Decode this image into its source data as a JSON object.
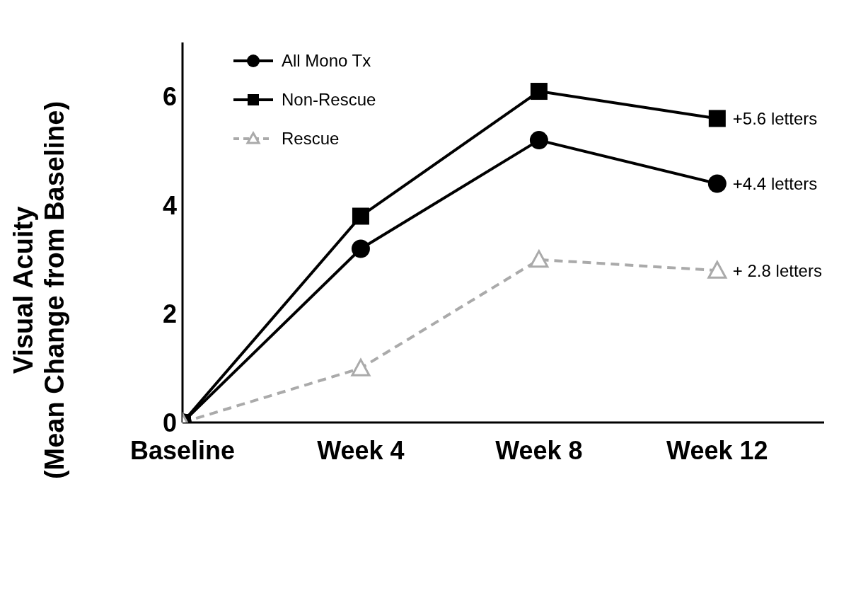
{
  "chart_data": {
    "type": "line",
    "ylabel": "Visual Acuity\n(Mean Change from Baseline)",
    "categories": [
      "Baseline",
      "Week 4",
      "Week 8",
      "Week 12"
    ],
    "ylim": [
      0,
      7
    ],
    "yticks": [
      0,
      2,
      4,
      6
    ],
    "grid": false,
    "legend": "top left",
    "series": [
      {
        "name": "All Mono Tx",
        "color": "#000000",
        "values": [
          0,
          3.2,
          5.2,
          4.4
        ],
        "marker": "circle",
        "line_style": "solid"
      },
      {
        "name": "Non-Rescue",
        "color": "#000000",
        "values": [
          0,
          3.8,
          6.1,
          5.6
        ],
        "marker": "square",
        "line_style": "solid"
      },
      {
        "name": "Rescue",
        "color": "#aaaaaa",
        "values": [
          0,
          1.0,
          3.0,
          2.8
        ],
        "marker": "triangle",
        "line_style": "dashed"
      }
    ],
    "annotations": [
      {
        "text": "+5.6 letters",
        "x": "Week 12",
        "y": 5.6
      },
      {
        "text": "+4.4 letters",
        "x": "Week 12",
        "y": 4.4
      },
      {
        "text": "+ 2.8 letters",
        "x": "Week 12",
        "y": 2.8
      }
    ]
  }
}
